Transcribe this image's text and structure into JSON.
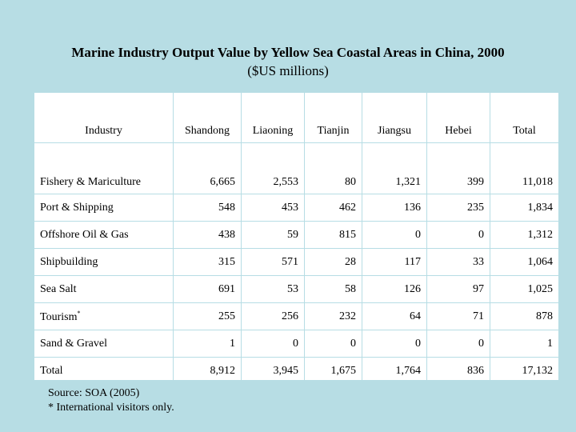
{
  "title": "Marine Industry Output Value by Yellow Sea Coastal Areas in China, 2000",
  "subtitle": "($US millions)",
  "table": {
    "headers": [
      "Industry",
      "Shandong",
      "Liaoning",
      "Tianjin",
      "Jiangsu",
      "Hebei",
      "Total"
    ],
    "rows": [
      {
        "industry": "Fishery & Mariculture",
        "mark": "",
        "values": [
          "6,665",
          "2,553",
          "80",
          "1,321",
          "399",
          "11,018"
        ]
      },
      {
        "industry": "Port & Shipping",
        "mark": "",
        "values": [
          "548",
          "453",
          "462",
          "136",
          "235",
          "1,834"
        ]
      },
      {
        "industry": "Offshore Oil & Gas",
        "mark": "",
        "values": [
          "438",
          "59",
          "815",
          "0",
          "0",
          "1,312"
        ]
      },
      {
        "industry": "Shipbuilding",
        "mark": "",
        "values": [
          "315",
          "571",
          "28",
          "117",
          "33",
          "1,064"
        ]
      },
      {
        "industry": "Sea Salt",
        "mark": "",
        "values": [
          "691",
          "53",
          "58",
          "126",
          "97",
          "1,025"
        ]
      },
      {
        "industry": "Tourism",
        "mark": "*",
        "values": [
          "255",
          "256",
          "232",
          "64",
          "71",
          "878"
        ]
      },
      {
        "industry": "Sand & Gravel",
        "mark": "",
        "values": [
          "1",
          "0",
          "0",
          "0",
          "0",
          "1"
        ]
      },
      {
        "industry": "Total",
        "mark": "",
        "values": [
          "8,912",
          "3,945",
          "1,675",
          "1,764",
          "836",
          "17,132"
        ]
      }
    ]
  },
  "source_note": "Source: SOA (2005)",
  "footnote": "* International visitors only."
}
